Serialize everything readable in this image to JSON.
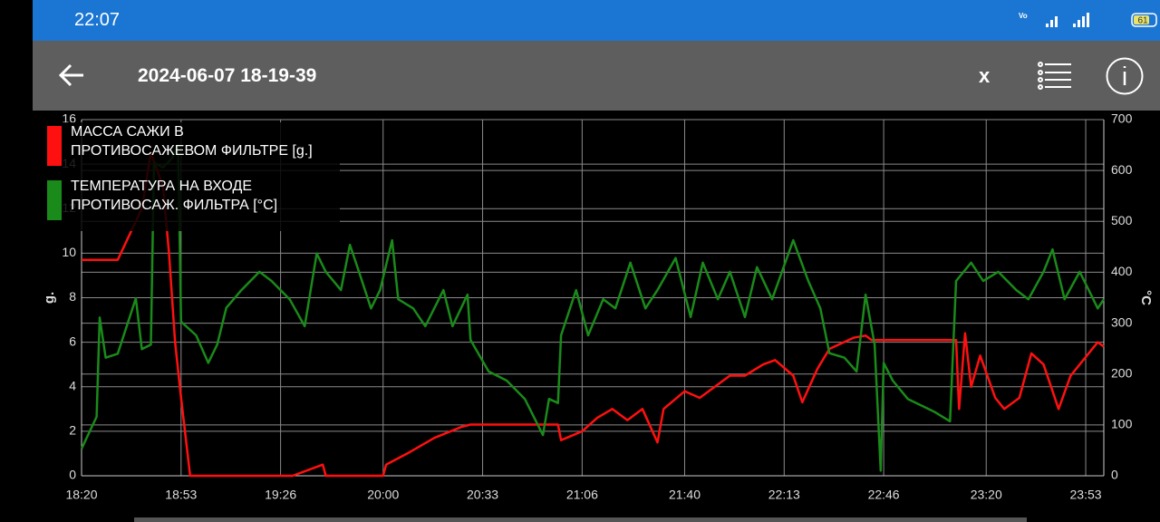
{
  "status_bar": {
    "time": "22:07",
    "battery": 61
  },
  "app_bar": {
    "title": "2024-06-07 18-19-39",
    "close": "x"
  },
  "chart_data": {
    "type": "line",
    "y_label": "g.",
    "y2_label": "°C",
    "xlim": [
      "18:20",
      "23:59"
    ],
    "xticks": [
      "18:20",
      "18:53",
      "19:26",
      "20:00",
      "20:33",
      "21:06",
      "21:40",
      "22:13",
      "22:46",
      "23:20",
      "23:53"
    ],
    "ylim": [
      0,
      16
    ],
    "yticks": [
      0,
      2,
      4,
      6,
      8,
      10,
      12,
      14,
      16
    ],
    "y2lim": [
      0,
      700
    ],
    "y2ticks": [
      0,
      100,
      200,
      300,
      400,
      500,
      600,
      700
    ],
    "grid": true,
    "legend": "top-left",
    "series": [
      {
        "name": "МАССА САЖИ В ПРОТИВОСАЖЕВОМ ФИЛЬТРЕ [g.]",
        "color": "#ff1010",
        "axis": "y",
        "x": [
          "18:20",
          "18:32",
          "18:40",
          "18:43",
          "18:47",
          "18:49",
          "18:51",
          "18:53",
          "18:56",
          "19:30",
          "19:40",
          "19:41",
          "20:00",
          "20:01",
          "20:08",
          "20:17",
          "20:26",
          "20:29",
          "20:58",
          "20:59",
          "21:06",
          "21:11",
          "21:16",
          "21:21",
          "21:26",
          "21:31",
          "21:33",
          "21:40",
          "21:45",
          "21:50",
          "21:55",
          "22:00",
          "22:06",
          "22:10",
          "22:16",
          "22:19",
          "22:24",
          "22:28",
          "22:36",
          "22:40",
          "22:42",
          "23:10",
          "23:11",
          "23:13",
          "23:15",
          "23:18",
          "23:23",
          "23:26",
          "23:31",
          "23:35",
          "23:39",
          "23:44",
          "23:48",
          "23:57",
          "23:59"
        ],
        "values": [
          9.7,
          9.7,
          12,
          14.5,
          13,
          10,
          6,
          3.5,
          0,
          0,
          0.5,
          0,
          0,
          0.5,
          1,
          1.7,
          2.2,
          2.3,
          2.3,
          1.6,
          2,
          2.6,
          3,
          2.5,
          3,
          1.5,
          3,
          3.8,
          3.5,
          4,
          4.5,
          4.5,
          5,
          5.2,
          4.5,
          3.3,
          4.8,
          5.7,
          6.2,
          6.3,
          6.1,
          6.1,
          3,
          6.4,
          4,
          5.4,
          3.5,
          3,
          3.5,
          5.5,
          5,
          3,
          4.5,
          6,
          5.8
        ]
      },
      {
        "name": "ТЕМПЕРАТУРА НА ВХОДЕ ПРОТИВОСАЖ. ФИЛЬТРА [°C]",
        "color": "#1a8a1a",
        "axis": "y2",
        "x": [
          "18:20",
          "18:25",
          "18:26",
          "18:28",
          "18:32",
          "18:38",
          "18:40",
          "18:43",
          "18:44",
          "18:47",
          "18:50",
          "18:52",
          "18:53",
          "18:58",
          "19:02",
          "19:05",
          "19:08",
          "19:13",
          "19:19",
          "19:23",
          "19:29",
          "19:34",
          "19:38",
          "19:41",
          "19:46",
          "19:49",
          "19:52",
          "19:56",
          "19:59",
          "20:03",
          "20:05",
          "20:10",
          "20:14",
          "20:20",
          "20:23",
          "20:28",
          "20:29",
          "20:35",
          "20:41",
          "20:47",
          "20:53",
          "20:55",
          "20:58",
          "20:59",
          "21:04",
          "21:08",
          "21:13",
          "21:17",
          "21:22",
          "21:27",
          "21:31",
          "21:37",
          "21:42",
          "21:46",
          "21:51",
          "21:55",
          "22:00",
          "22:04",
          "22:09",
          "22:16",
          "22:21",
          "22:25",
          "22:28",
          "22:33",
          "22:37",
          "22:40",
          "22:43",
          "22:45",
          "22:46",
          "22:49",
          "22:54",
          "23:03",
          "23:08",
          "23:10",
          "23:15",
          "23:19",
          "23:24",
          "23:30",
          "23:34",
          "23:39",
          "23:42",
          "23:46",
          "23:51",
          "23:54",
          "23:57",
          "23:59"
        ],
        "values": [
          53,
          116,
          311,
          232,
          240,
          349,
          249,
          258,
          615,
          606,
          624,
          650,
          303,
          276,
          222,
          258,
          330,
          365,
          401,
          383,
          347,
          294,
          437,
          401,
          365,
          454,
          401,
          329,
          365,
          463,
          347,
          329,
          294,
          365,
          294,
          356,
          267,
          205,
          187,
          151,
          80,
          151,
          143,
          276,
          365,
          276,
          347,
          329,
          419,
          329,
          365,
          428,
          312,
          419,
          347,
          401,
          312,
          410,
          347,
          463,
          383,
          329,
          241,
          232,
          205,
          356,
          258,
          10,
          222,
          187,
          151,
          125,
          107,
          383,
          419,
          383,
          401,
          365,
          347,
          401,
          445,
          347,
          401,
          365,
          329,
          347
        ]
      }
    ]
  }
}
